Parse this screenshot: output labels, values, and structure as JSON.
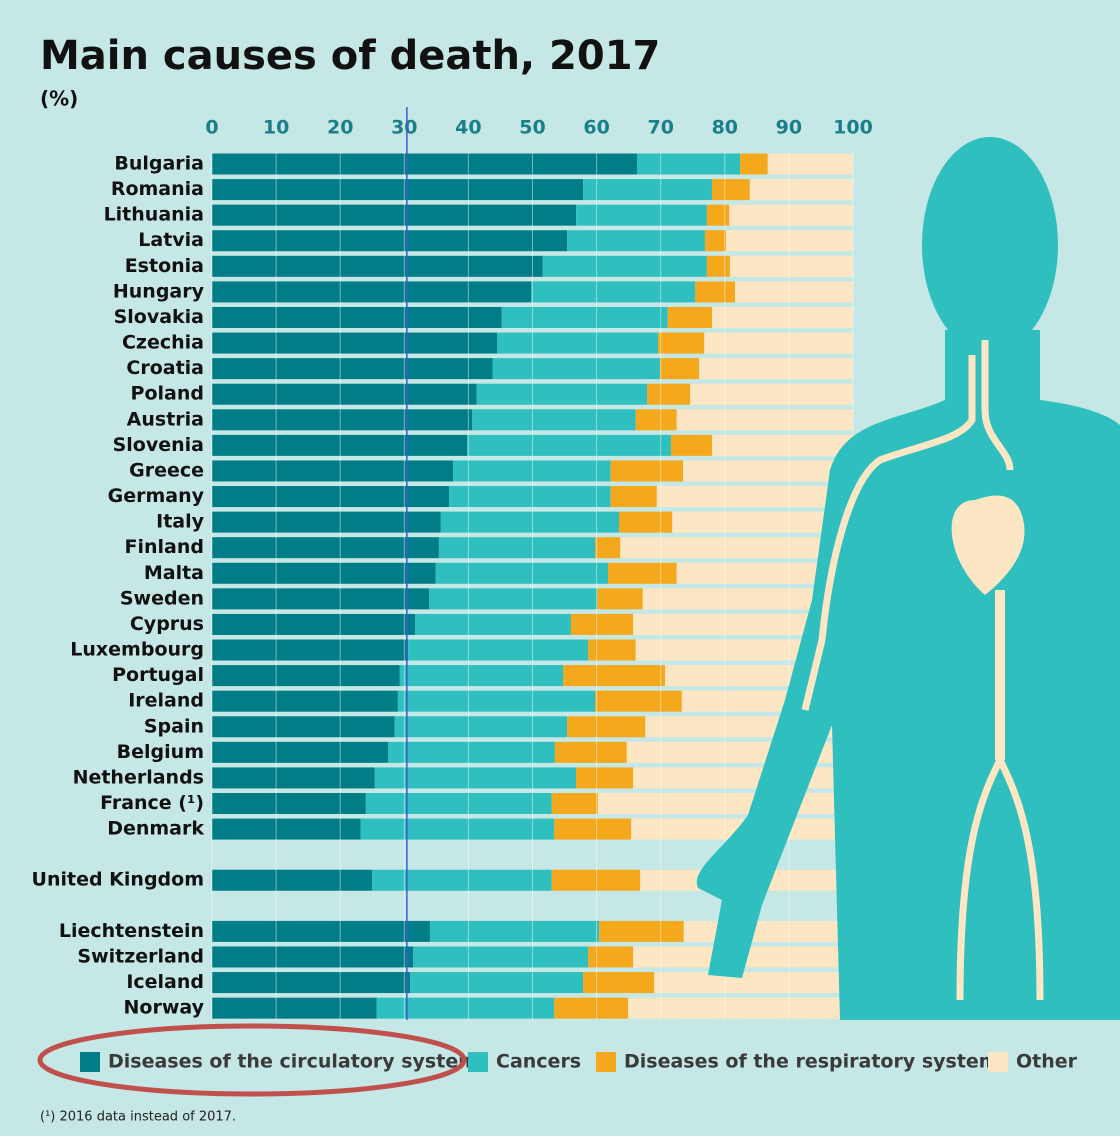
{
  "chart_data": {
    "type": "stacked_bar_horizontal",
    "title": "Main causes of death, 2017",
    "subtitle": "(%)",
    "categories": [
      "Bulgaria",
      "Romania",
      "Lithuania",
      "Latvia",
      "Estonia",
      "Hungary",
      "Slovakia",
      "Czechia",
      "Croatia",
      "Poland",
      "Austria",
      "Slovenia",
      "Greece",
      "Germany",
      "Italy",
      "Finland",
      "Malta",
      "Sweden",
      "Cyprus",
      "Luxembourg",
      "Portugal",
      "Ireland",
      "Spain",
      "Belgium",
      "Netherlands",
      "France (¹)",
      "Denmark",
      null,
      "United Kingdom",
      null,
      "Liechtenstein",
      "Switzerland",
      "Iceland",
      "Norway"
    ],
    "series": [
      {
        "name": "Diseases of the circulatory system",
        "color": "#007d87",
        "values": [
          66.3,
          57.9,
          56.8,
          55.4,
          51.6,
          49.8,
          45.2,
          44.5,
          43.8,
          41.3,
          40.6,
          39.8,
          37.6,
          37.0,
          35.7,
          35.4,
          34.9,
          33.9,
          31.7,
          30.6,
          29.3,
          29.0,
          28.5,
          27.5,
          25.4,
          24.0,
          23.2,
          null,
          25.0,
          null,
          34.0,
          31.4,
          30.9,
          25.7
        ]
      },
      {
        "name": "Cancers",
        "color": "#30bfbf",
        "values": [
          16.1,
          20.1,
          20.4,
          21.5,
          25.6,
          25.6,
          25.9,
          25.1,
          26.1,
          26.6,
          25.5,
          31.8,
          24.6,
          25.2,
          27.8,
          24.4,
          26.9,
          26.2,
          24.3,
          28.1,
          25.5,
          30.8,
          26.9,
          26.0,
          31.4,
          29.0,
          30.2,
          null,
          28.0,
          null,
          26.4,
          27.3,
          27.0,
          27.7
        ]
      },
      {
        "name": "Diseases of the respiratory system",
        "color": "#f5a81c",
        "values": [
          4.3,
          5.9,
          3.5,
          3.3,
          3.6,
          6.2,
          6.9,
          7.2,
          6.1,
          6.7,
          6.4,
          6.4,
          11.3,
          7.2,
          8.3,
          3.9,
          10.7,
          7.1,
          9.7,
          7.4,
          15.9,
          13.5,
          12.2,
          11.2,
          8.9,
          7.2,
          12.0,
          null,
          13.8,
          null,
          13.2,
          7.0,
          11.1,
          11.5
        ]
      },
      {
        "name": "Other",
        "color": "#fde6c4",
        "values": [
          13.3,
          16.1,
          19.3,
          19.8,
          19.2,
          18.4,
          22.0,
          23.2,
          24.0,
          25.4,
          27.5,
          22.0,
          26.5,
          30.6,
          28.2,
          36.3,
          27.5,
          32.8,
          34.3,
          33.9,
          29.3,
          26.7,
          32.4,
          35.3,
          34.3,
          39.8,
          34.6,
          null,
          33.2,
          null,
          26.4,
          34.3,
          31.0,
          35.1
        ]
      }
    ],
    "xlim": [
      0,
      100
    ],
    "xticks": [
      0,
      10,
      20,
      30,
      40,
      50,
      60,
      70,
      80,
      90,
      100
    ],
    "grid": true,
    "reference_line": 30.4,
    "footnote": "(¹) 2016 data instead of 2017."
  }
}
